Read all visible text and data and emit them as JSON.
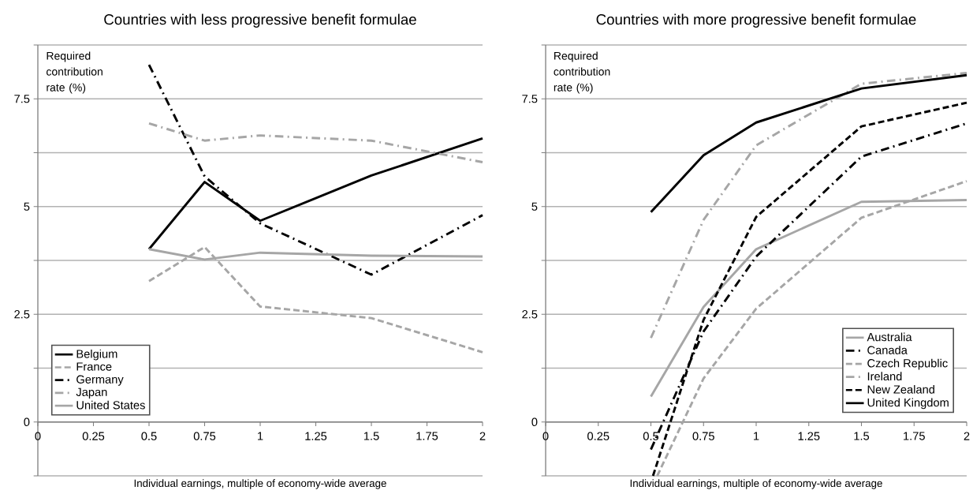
{
  "chart_data": [
    {
      "type": "line",
      "title": "Countries with less progressive benefit formulae",
      "xlabel": "Individual earnings, multiple of economy-wide average",
      "ylabel": "Required contribution rate (%)",
      "x": [
        0.5,
        0.75,
        1,
        1.5,
        2
      ],
      "series": [
        {
          "name": "Belgium",
          "color": "#000000",
          "line_style": "solid",
          "values": [
            4.01,
            5.57,
            4.67,
            5.72,
            6.58
          ]
        },
        {
          "name": "France",
          "color": "#a6a6a6",
          "line_style": "dashed",
          "values": [
            3.27,
            4.06,
            2.68,
            2.41,
            1.62
          ]
        },
        {
          "name": "Germany",
          "color": "#000000",
          "line_style": "dashdot",
          "values": [
            8.29,
            5.7,
            4.61,
            3.42,
            4.8
          ]
        },
        {
          "name": "Japan",
          "color": "#a6a6a6",
          "line_style": "dashdot",
          "values": [
            6.93,
            6.53,
            6.65,
            6.53,
            6.03
          ]
        },
        {
          "name": "United States",
          "color": "#a6a6a6",
          "line_style": "solid",
          "values": [
            4.01,
            3.77,
            3.93,
            3.86,
            3.84
          ]
        }
      ],
      "xlim": [
        0,
        2
      ],
      "xticks": [
        0,
        0.25,
        0.5,
        0.75,
        1,
        1.25,
        1.5,
        1.75,
        2
      ],
      "ylim": [
        -1.25,
        8.75
      ],
      "yticks": [
        {
          "value": -1.25,
          "label": null
        },
        0,
        {
          "value": 1.25,
          "label": null
        },
        2.5,
        {
          "value": 3.75,
          "label": null
        },
        5,
        {
          "value": 6.25,
          "label": null
        },
        7.5,
        {
          "value": 8.75,
          "label": null
        }
      ],
      "grid": "y",
      "legend": "bottom left"
    },
    {
      "type": "line",
      "title": "Countries with more progressive benefit formulae",
      "xlabel": "Individual earnings, multiple of economy-wide average",
      "ylabel": "Required contribution rate (%)",
      "x": [
        0.5,
        0.75,
        1,
        1.5,
        2
      ],
      "series": [
        {
          "name": "Australia",
          "color": "#a6a6a6",
          "line_style": "solid",
          "values": [
            0.59,
            2.67,
            4.01,
            5.11,
            5.15
          ]
        },
        {
          "name": "Canada",
          "color": "#000000",
          "line_style": "dashdot",
          "values": [
            -0.64,
            2.1,
            3.84,
            6.16,
            6.93
          ]
        },
        {
          "name": "Czech Republic",
          "color": "#a6a6a6",
          "line_style": "dashed",
          "x": [
            0.53,
            0.75,
            1,
            1.5,
            2
          ],
          "values": [
            -1.25,
            1.01,
            2.63,
            4.74,
            5.59
          ]
        },
        {
          "name": "Ireland",
          "color": "#a6a6a6",
          "line_style": "dashdot",
          "values": [
            1.95,
            4.69,
            6.42,
            7.85,
            8.1
          ]
        },
        {
          "name": "New Zealand",
          "color": "#000000",
          "line_style": "dashed",
          "x": [
            0.51,
            0.75,
            1,
            1.5,
            2
          ],
          "values": [
            -1.25,
            2.37,
            4.76,
            6.86,
            7.41
          ]
        },
        {
          "name": "United Kingdom",
          "color": "#000000",
          "line_style": "solid",
          "values": [
            4.87,
            6.19,
            6.95,
            7.74,
            8.05
          ]
        }
      ],
      "xlim": [
        0,
        2
      ],
      "xticks": [
        0,
        0.25,
        0.5,
        0.75,
        1,
        1.25,
        1.5,
        1.75,
        2
      ],
      "ylim": [
        -1.25,
        8.75
      ],
      "yticks": [
        {
          "value": -1.25,
          "label": null
        },
        0,
        {
          "value": 1.25,
          "label": null
        },
        2.5,
        {
          "value": 3.75,
          "label": null
        },
        5,
        {
          "value": 6.25,
          "label": null
        },
        7.5,
        {
          "value": 8.75,
          "label": null
        }
      ],
      "grid": "y",
      "legend": "bottom right"
    }
  ]
}
